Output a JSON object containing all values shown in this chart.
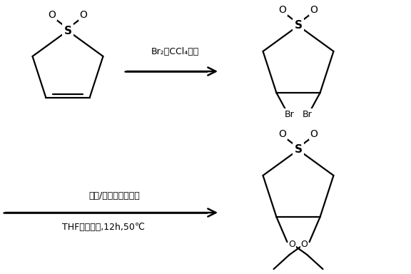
{
  "background_color": "#ffffff",
  "line_color": "#000000",
  "line_width": 1.6,
  "fig_width": 5.76,
  "fig_height": 3.84,
  "reaction1_label": "Br₂的CCl₄溶液",
  "reaction2_label1": "乙醇/乙醇鑰（现制）",
  "reaction2_label2": "THF溶剂回流,12h,50℃",
  "font_size": 9
}
